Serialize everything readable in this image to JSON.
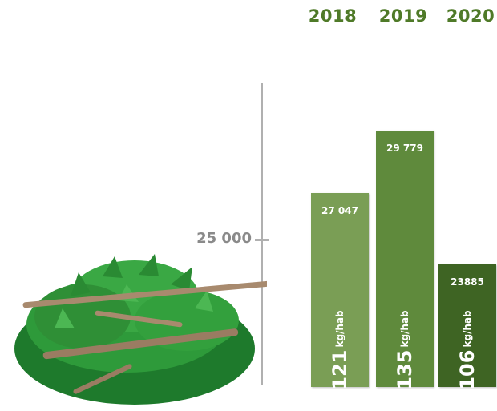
{
  "chart_data": {
    "type": "bar",
    "categories": [
      "2018",
      "2019",
      "2020"
    ],
    "values": [
      27047,
      29779,
      23885
    ],
    "value_labels": [
      "27 047",
      "29 779",
      "23885"
    ],
    "per_capita": [
      {
        "value": "121",
        "unit": "kg/hab"
      },
      {
        "value": "135",
        "unit": "kg/hab"
      },
      {
        "value": "106",
        "unit": "kg/hab"
      }
    ],
    "yticks": [
      {
        "value": 25000,
        "label": "25 000"
      }
    ],
    "ylim": [
      18500,
      32500
    ],
    "colors": [
      "#7a9e55",
      "#5f8a3c",
      "#3e6423"
    ],
    "year_color": "#4f7a28",
    "grid": false,
    "legend": "none",
    "icon": "green-waste-bush-icon"
  }
}
